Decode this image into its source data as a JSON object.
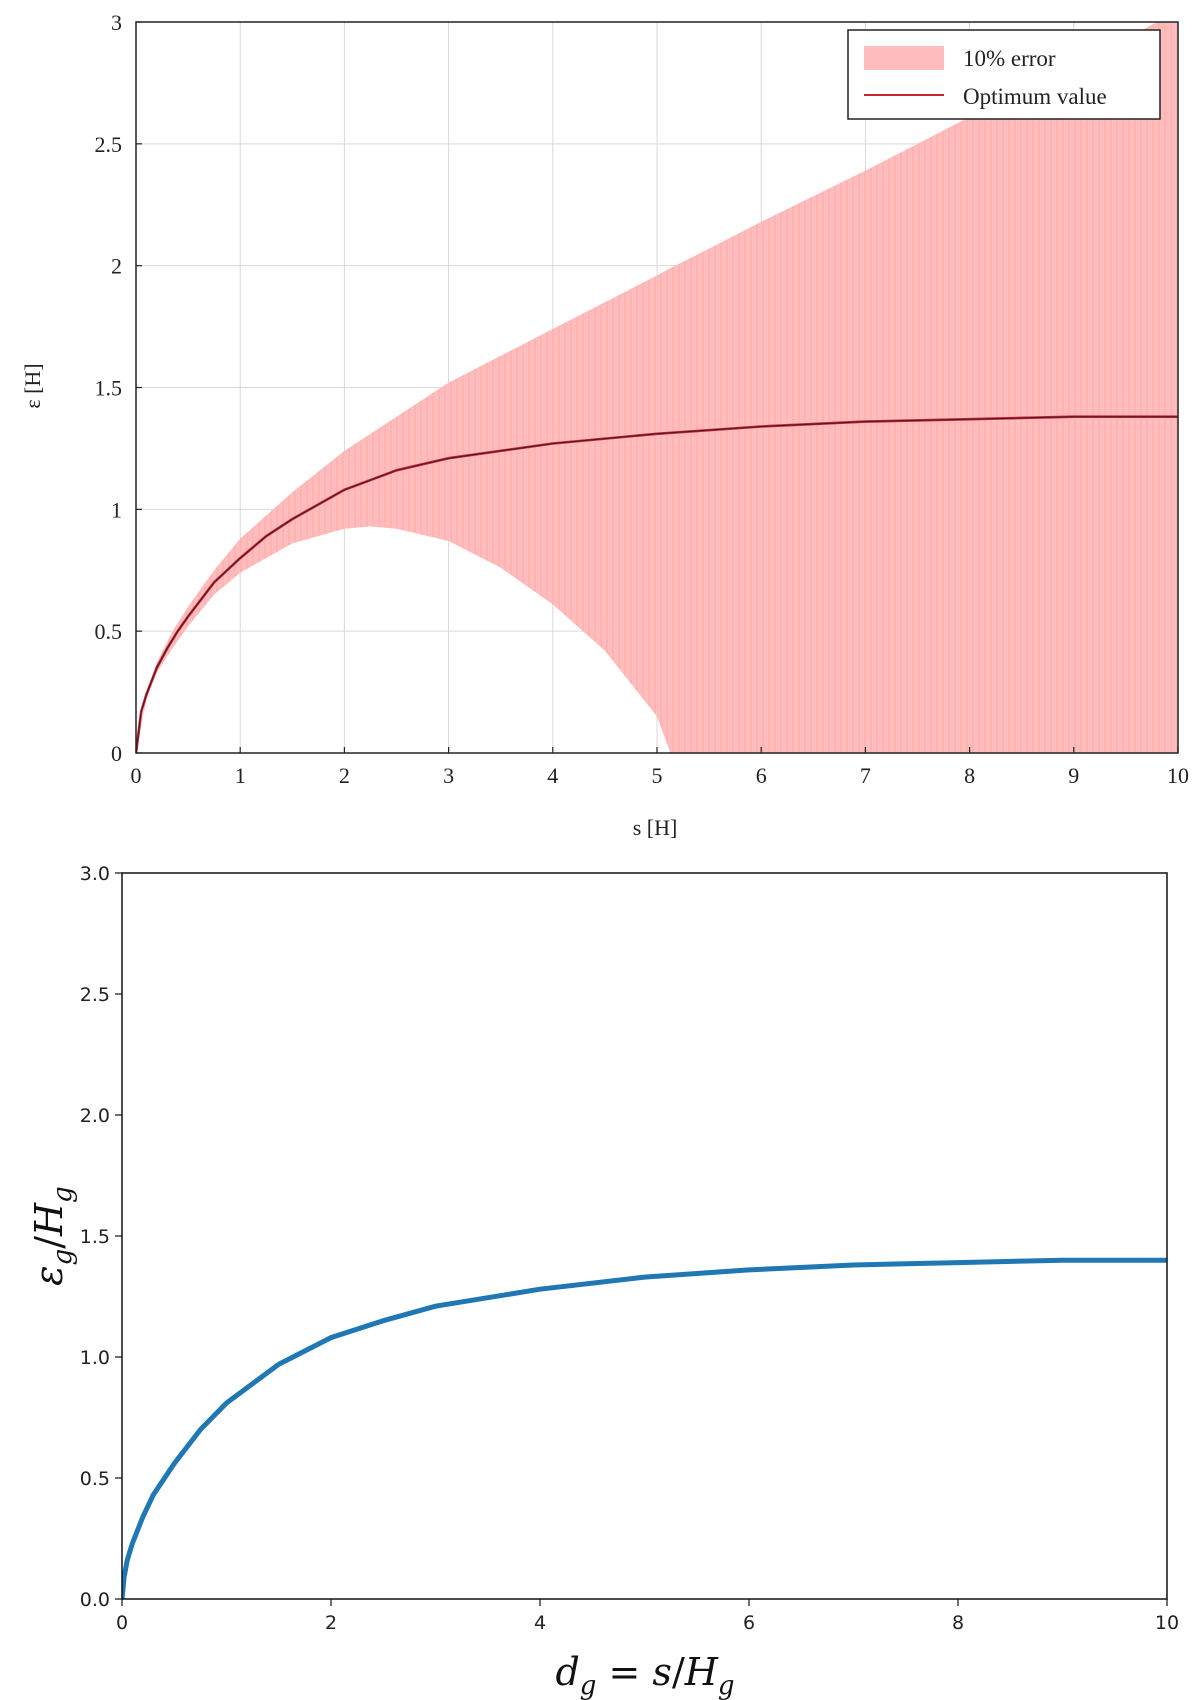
{
  "chart_data": [
    {
      "type": "line",
      "xlabel": "s [H]",
      "ylabel": "ε [H]",
      "xlim": [
        0,
        10
      ],
      "ylim": [
        0,
        3
      ],
      "xticks": [
        "0",
        "1",
        "2",
        "3",
        "4",
        "5",
        "6",
        "7",
        "8",
        "9",
        "10"
      ],
      "yticks": [
        "0",
        "0.5",
        "1",
        "1.5",
        "2",
        "2.5",
        "3"
      ],
      "grid": true,
      "legend_position": "top-right",
      "colors": {
        "band": "#ffb9b9",
        "line": "#c82434",
        "line_core": "#222222"
      },
      "series": [
        {
          "name": "10% error",
          "kind": "band",
          "x": [
            0.0,
            0.1,
            0.2,
            0.35,
            0.5,
            0.75,
            1.0,
            1.5,
            2.0,
            2.25,
            2.5,
            3.0,
            3.5,
            4.0,
            4.5,
            5.0,
            5.13,
            5.5,
            6.0,
            7.0,
            8.0,
            9.0,
            9.8,
            10.0
          ],
          "lower": [
            0.0,
            0.22,
            0.33,
            0.43,
            0.52,
            0.65,
            0.74,
            0.86,
            0.92,
            0.93,
            0.92,
            0.87,
            0.76,
            0.61,
            0.42,
            0.15,
            0.0,
            0.0,
            0.0,
            0.0,
            0.0,
            0.0,
            0.0,
            0.0
          ],
          "upper": [
            0.0,
            0.24,
            0.37,
            0.5,
            0.6,
            0.75,
            0.88,
            1.07,
            1.24,
            1.31,
            1.38,
            1.52,
            1.63,
            1.74,
            1.85,
            1.96,
            1.99,
            2.07,
            2.18,
            2.39,
            2.61,
            2.82,
            3.0,
            3.0
          ]
        },
        {
          "name": "Optimum value",
          "kind": "line",
          "x": [
            0.0,
            0.05,
            0.1,
            0.2,
            0.3,
            0.4,
            0.5,
            0.75,
            1.0,
            1.25,
            1.5,
            2.0,
            2.5,
            3.0,
            4.0,
            5.0,
            6.0,
            7.0,
            8.0,
            9.0,
            10.0
          ],
          "y": [
            0.0,
            0.17,
            0.24,
            0.35,
            0.43,
            0.5,
            0.56,
            0.7,
            0.8,
            0.89,
            0.96,
            1.08,
            1.16,
            1.21,
            1.27,
            1.31,
            1.34,
            1.36,
            1.37,
            1.38,
            1.38
          ]
        }
      ]
    },
    {
      "type": "line",
      "xlabel": "d_g = s/H_g",
      "ylabel": "ε_g/H_g",
      "xlim": [
        0,
        10
      ],
      "ylim": [
        0,
        3
      ],
      "xticks": [
        "0",
        "2",
        "4",
        "6",
        "8",
        "10"
      ],
      "yticks": [
        "0.0",
        "0.5",
        "1.0",
        "1.5",
        "2.0",
        "2.5",
        "3.0"
      ],
      "grid": false,
      "colors": {
        "line": "#1f77b4"
      },
      "series": [
        {
          "kind": "line",
          "x": [
            0.0,
            0.02,
            0.05,
            0.1,
            0.2,
            0.3,
            0.5,
            0.75,
            1.0,
            1.5,
            2.0,
            2.5,
            3.0,
            4.0,
            5.0,
            6.0,
            7.0,
            8.0,
            9.0,
            10.0
          ],
          "y": [
            0.0,
            0.09,
            0.16,
            0.23,
            0.34,
            0.43,
            0.56,
            0.7,
            0.81,
            0.97,
            1.08,
            1.15,
            1.21,
            1.28,
            1.33,
            1.36,
            1.38,
            1.39,
            1.4,
            1.4
          ]
        }
      ]
    }
  ]
}
